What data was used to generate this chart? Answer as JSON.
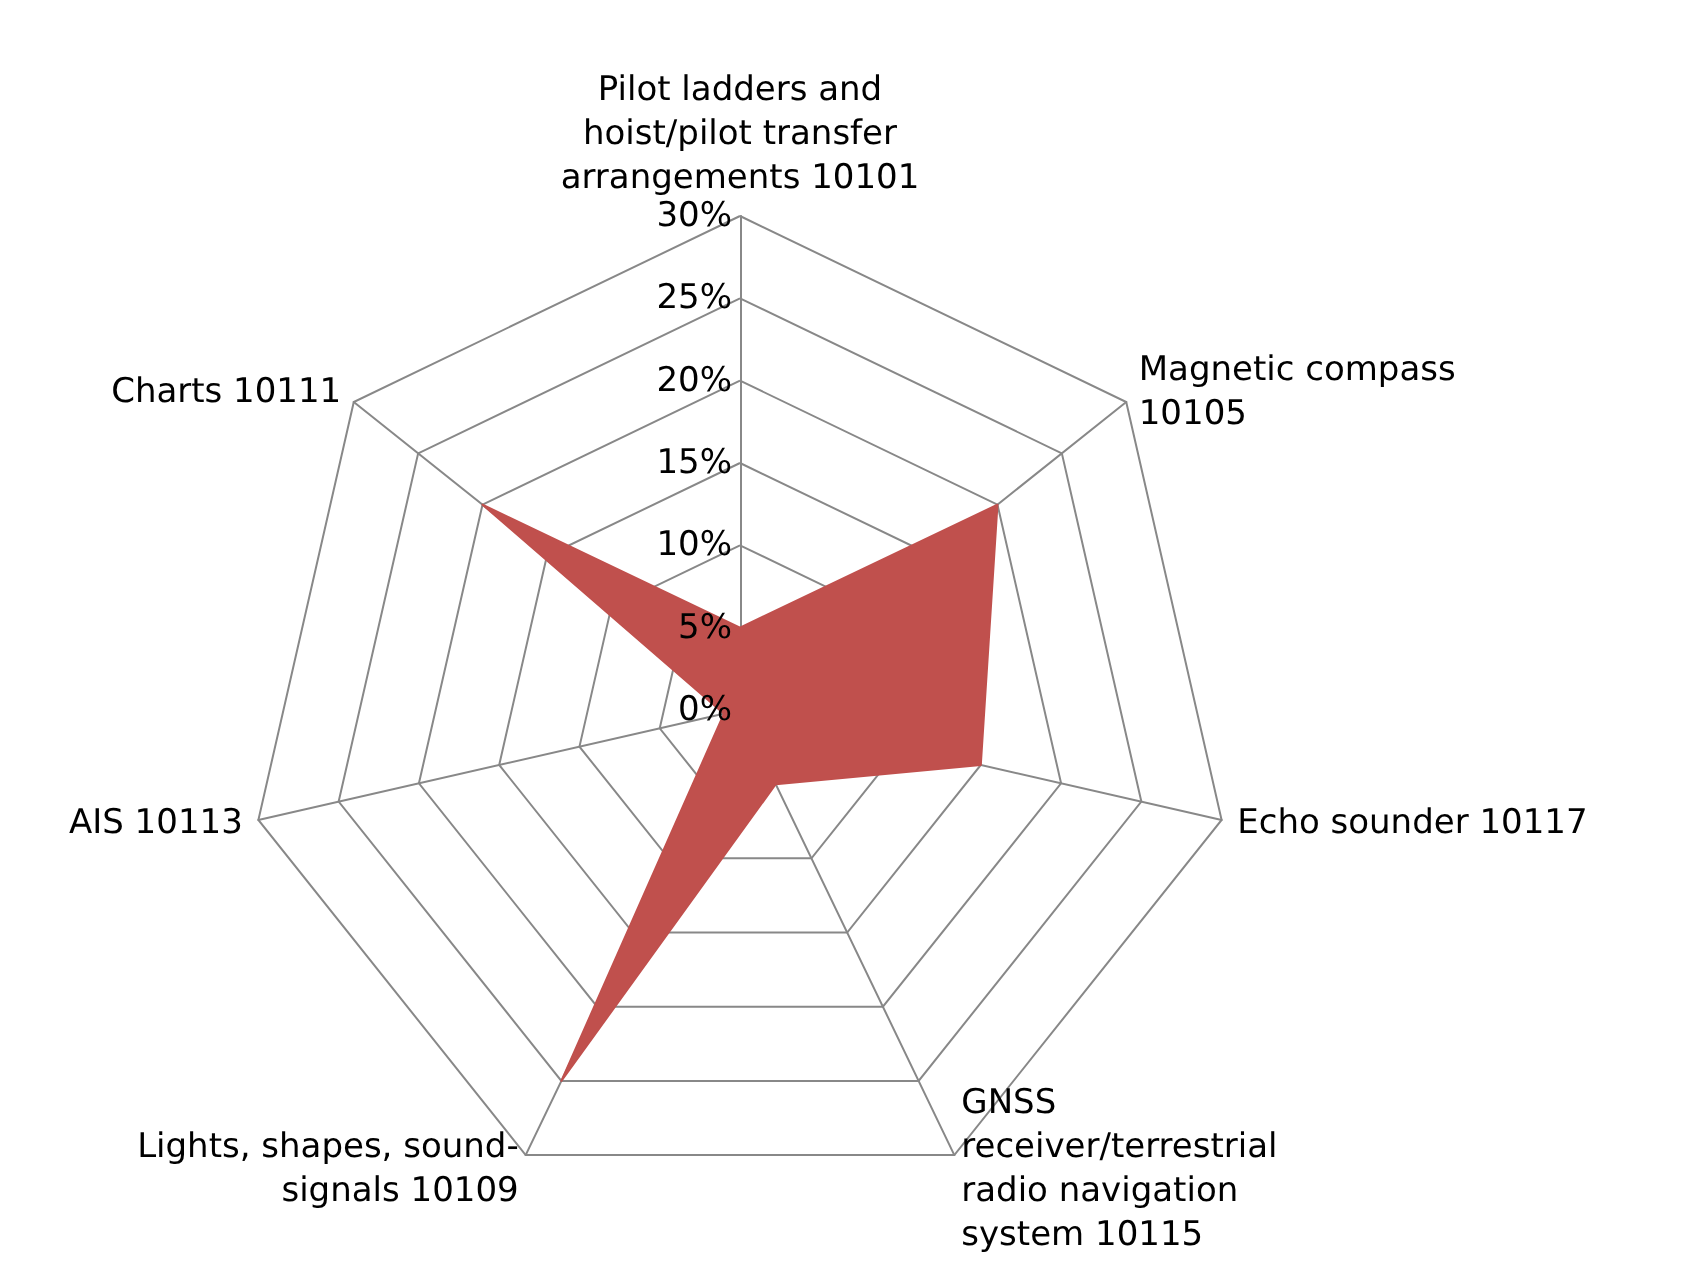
{
  "chart_data": {
    "type": "radar",
    "categories": [
      "Pilot ladders and hoist/pilot transfer arrangements 10101",
      "Magnetic compass 10105",
      "Echo sounder 10117",
      "GNSS receiver/terrestrial radio navigation system 10115",
      "Lights, shapes, sound-signals 10109",
      "AIS 10113",
      "Charts 10111"
    ],
    "series": [
      {
        "color": "#c0504d",
        "values": [
          5,
          20,
          15,
          5,
          25,
          1,
          20
        ]
      }
    ],
    "ylim": [
      0,
      30
    ],
    "yticks": [
      {
        "value": 0,
        "label": "0%"
      },
      {
        "value": 5,
        "label": "5%"
      },
      {
        "value": 10,
        "label": "10%"
      },
      {
        "value": 15,
        "label": "15%"
      },
      {
        "value": 20,
        "label": "20%"
      },
      {
        "value": 25,
        "label": "25%"
      },
      {
        "value": 30,
        "label": "30%"
      }
    ]
  }
}
